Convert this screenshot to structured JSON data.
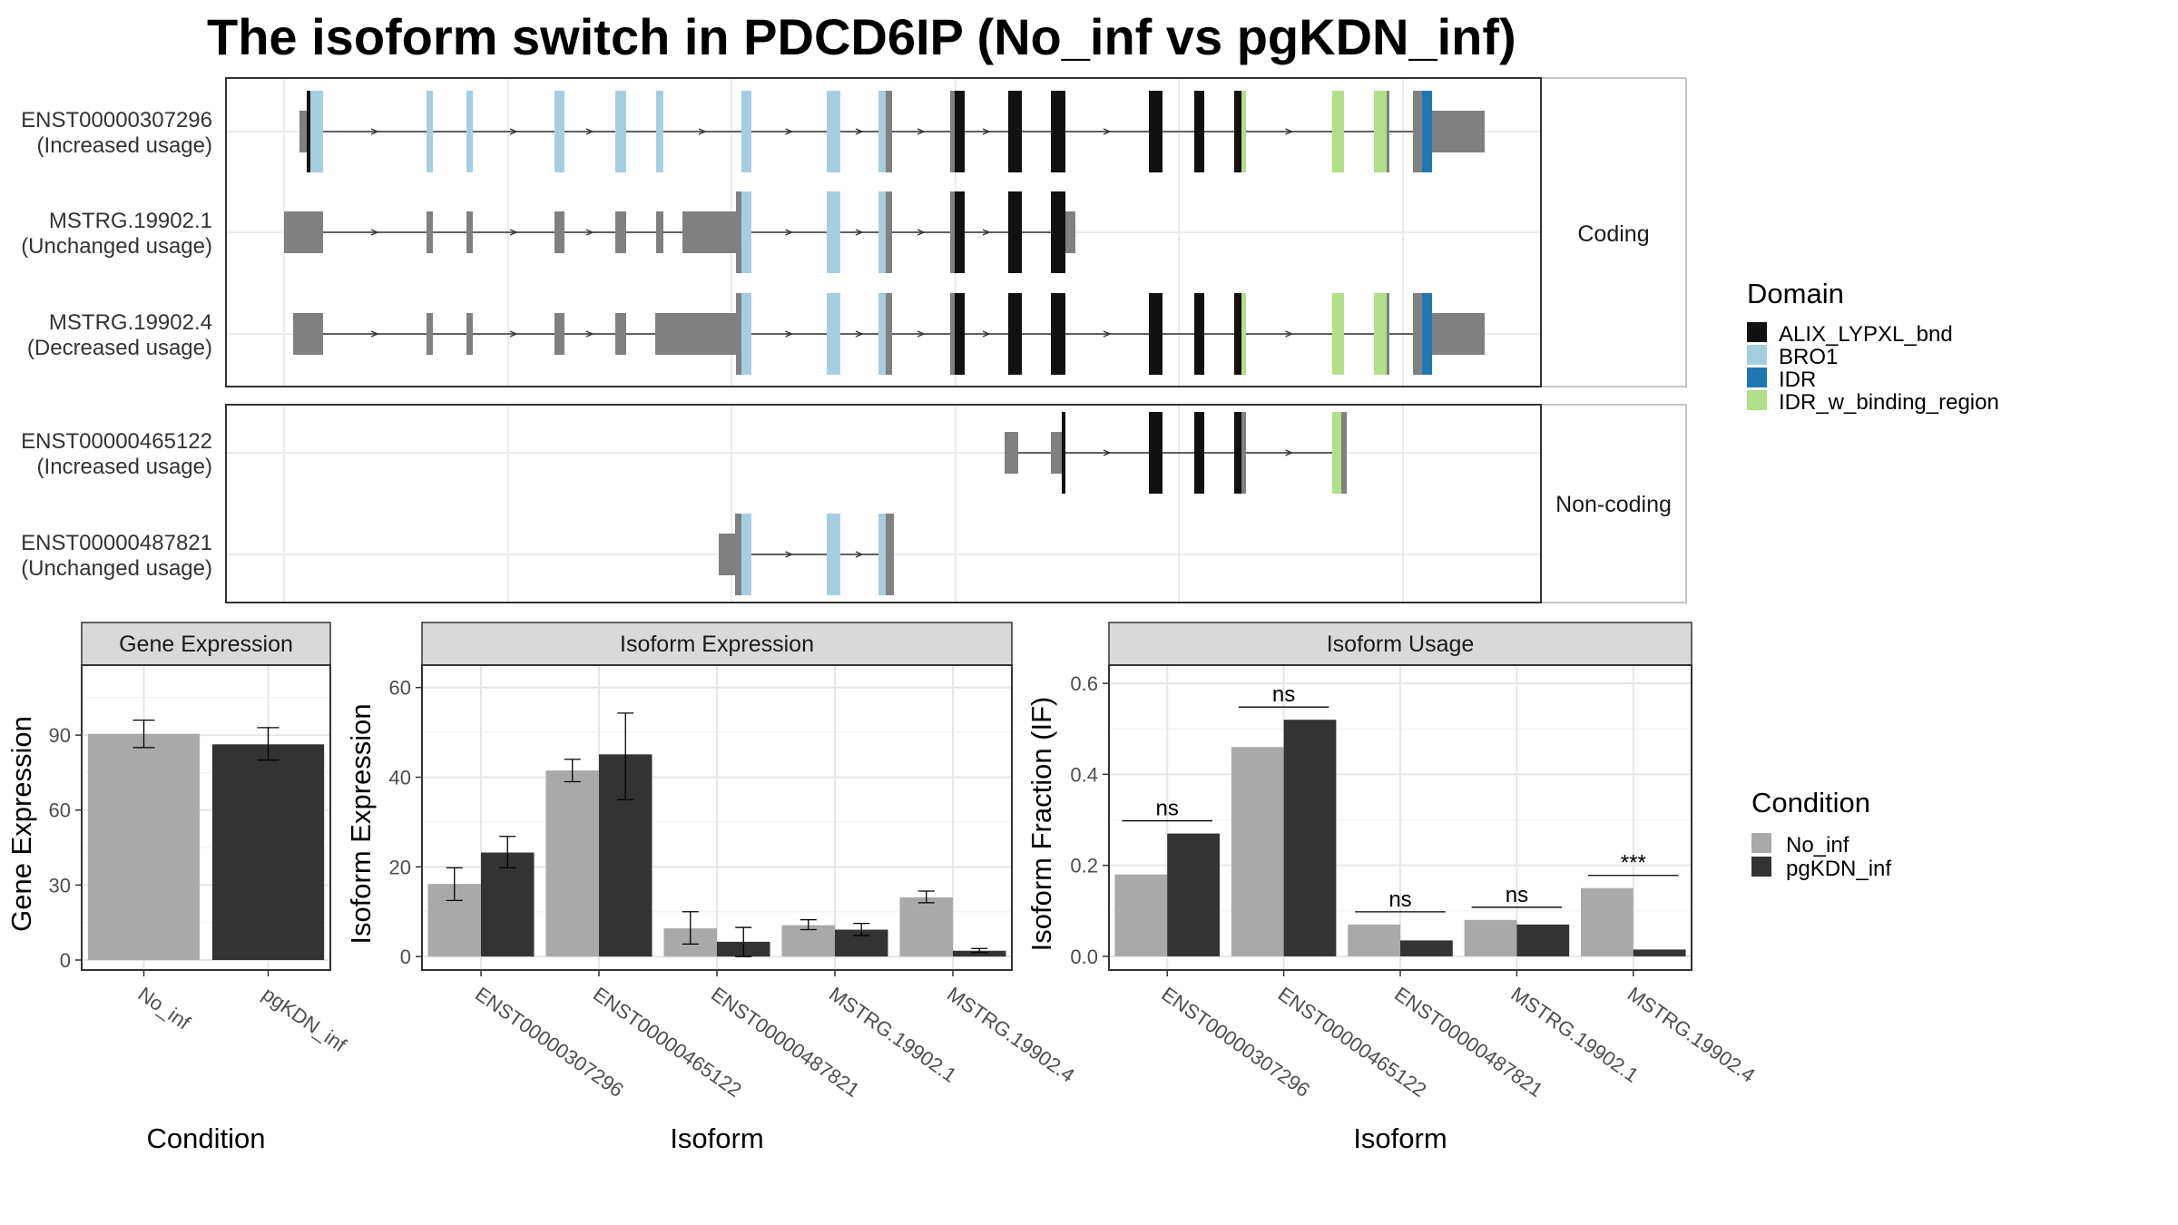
{
  "title": "The isoform switch in PDCD6IP (No_inf vs pgKDN_inf)",
  "structure": {
    "coding_label": "Coding",
    "noncoding_label": "Non-coding",
    "isoforms": [
      {
        "id": "ENST00000307296",
        "note": "(Increased usage)",
        "group": "coding"
      },
      {
        "id": "MSTRG.19902.1",
        "note": "(Unchanged usage)",
        "group": "coding"
      },
      {
        "id": "MSTRG.19902.4",
        "note": "(Decreased usage)",
        "group": "coding"
      },
      {
        "id": "ENST00000465122",
        "note": "(Increased usage)",
        "group": "noncoding"
      },
      {
        "id": "ENST00000487821",
        "note": "(Unchanged usage)",
        "group": "noncoding"
      }
    ]
  },
  "domain_legend": {
    "title": "Domain",
    "items": [
      {
        "label": "ALIX_LYPXL_bnd",
        "color": "#111111"
      },
      {
        "label": "BRO1",
        "color": "#a6cee3"
      },
      {
        "label": "IDR",
        "color": "#1f78b4"
      },
      {
        "label": "IDR_w_binding_region",
        "color": "#b2df8a"
      }
    ]
  },
  "condition_legend": {
    "title": "Condition",
    "items": [
      {
        "label": "No_inf",
        "color": "#a9a9a9"
      },
      {
        "label": "pgKDN_inf",
        "color": "#333333"
      }
    ]
  },
  "chart_data": [
    {
      "type": "bar",
      "panel": "Gene Expression",
      "xlabel": "Condition",
      "ylabel": "Gene Expression",
      "ylim": [
        -4,
        118
      ],
      "yticks": [
        0,
        30,
        60,
        90
      ],
      "categories": [
        "No_inf",
        "pgKDN_inf"
      ],
      "values": [
        90.5,
        86.3
      ],
      "errors": [
        [
          85,
          96
        ],
        [
          80,
          93
        ]
      ],
      "colors": [
        "#a9a9a9",
        "#333333"
      ]
    },
    {
      "type": "bar",
      "panel": "Isoform Expression",
      "xlabel": "Isoform",
      "ylabel": "Isoform Expression",
      "ylim": [
        -3,
        65
      ],
      "yticks": [
        0,
        20,
        40,
        60
      ],
      "categories": [
        "ENST00000307296",
        "ENST00000465122",
        "ENST00000487821",
        "MSTRG.19902.1",
        "MSTRG.19902.4"
      ],
      "series": [
        {
          "name": "No_inf",
          "values": [
            16.2,
            41.5,
            6.3,
            7.0,
            13.2
          ],
          "errors": [
            [
              12.5,
              19.8
            ],
            [
              39,
              44
            ],
            [
              2.8,
              10
            ],
            [
              6,
              8.2
            ],
            [
              12,
              14.6
            ]
          ]
        },
        {
          "name": "pgKDN_inf",
          "values": [
            23.2,
            45.1,
            3.3,
            6.0,
            1.3
          ],
          "errors": [
            [
              19.8,
              26.8
            ],
            [
              35,
              54.3
            ],
            [
              0,
              6.5
            ],
            [
              4.7,
              7.4
            ],
            [
              0.9,
              1.8
            ]
          ]
        }
      ]
    },
    {
      "type": "bar",
      "panel": "Isoform Usage",
      "xlabel": "Isoform",
      "ylabel": "Isoform Fraction (IF)",
      "ylim": [
        -0.03,
        0.64
      ],
      "yticks": [
        "0.0",
        "0.2",
        "0.4",
        "0.6"
      ],
      "categories": [
        "ENST00000307296",
        "ENST00000465122",
        "ENST00000487821",
        "MSTRG.19902.1",
        "MSTRG.19902.4"
      ],
      "series": [
        {
          "name": "No_inf",
          "values": [
            0.18,
            0.46,
            0.07,
            0.08,
            0.15
          ]
        },
        {
          "name": "pgKDN_inf",
          "values": [
            0.27,
            0.52,
            0.035,
            0.07,
            0.015
          ]
        }
      ],
      "significance": [
        "ns",
        "ns",
        "ns",
        "ns",
        "***"
      ]
    }
  ]
}
